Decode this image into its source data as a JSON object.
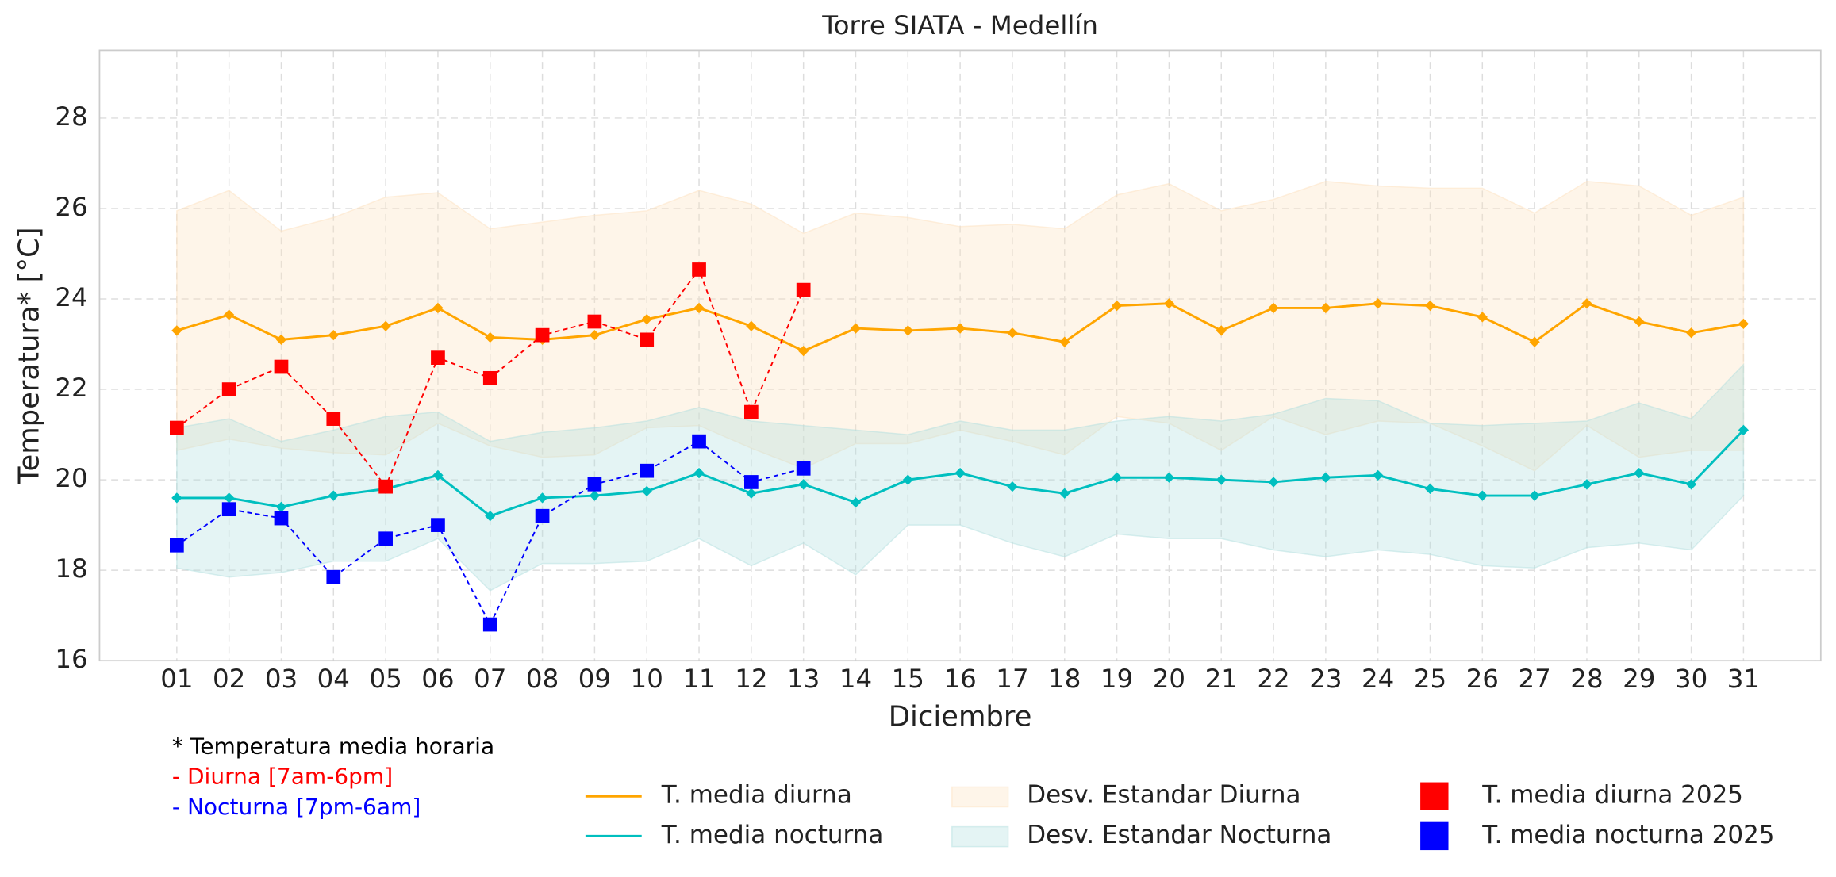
{
  "chart_data": {
    "type": "line",
    "title": "Torre SIATA - Medellín",
    "x_label": "Diciembre",
    "y_label": "Temperatura* [°C]",
    "categories": [
      "01",
      "02",
      "03",
      "04",
      "05",
      "06",
      "07",
      "08",
      "09",
      "10",
      "11",
      "12",
      "13",
      "14",
      "15",
      "16",
      "17",
      "18",
      "19",
      "20",
      "21",
      "22",
      "23",
      "24",
      "25",
      "26",
      "27",
      "28",
      "29",
      "30",
      "31"
    ],
    "ylim": [
      16,
      29.5
    ],
    "yticks": [
      16,
      18,
      20,
      22,
      24,
      26,
      28
    ],
    "grid": true,
    "bands": [
      {
        "name": "Desv. Estandar Diurna",
        "color": "#fde2c0",
        "upper": [
          25.95,
          26.4,
          25.5,
          25.8,
          26.25,
          26.35,
          25.55,
          25.7,
          25.85,
          25.95,
          26.4,
          26.1,
          25.45,
          25.9,
          25.8,
          25.6,
          25.65,
          25.55,
          26.3,
          26.55,
          25.95,
          26.2,
          26.6,
          26.5,
          26.45,
          26.45,
          25.9,
          26.6,
          26.5,
          25.85,
          26.25
        ],
        "lower": [
          20.65,
          20.9,
          20.7,
          20.6,
          20.55,
          21.25,
          20.75,
          20.5,
          20.55,
          21.15,
          21.2,
          20.7,
          20.25,
          20.8,
          20.8,
          21.1,
          20.85,
          20.55,
          21.4,
          21.25,
          20.65,
          21.4,
          21.0,
          21.3,
          21.25,
          20.75,
          20.2,
          21.2,
          20.5,
          20.65,
          20.65
        ]
      },
      {
        "name": "Desv. Estandar Nocturna",
        "color": "#b3e0e0",
        "upper": [
          21.15,
          21.35,
          20.85,
          21.1,
          21.4,
          21.5,
          20.85,
          21.05,
          21.15,
          21.3,
          21.6,
          21.3,
          21.2,
          21.1,
          21.0,
          21.3,
          21.1,
          21.1,
          21.3,
          21.4,
          21.3,
          21.45,
          21.8,
          21.75,
          21.25,
          21.2,
          21.25,
          21.3,
          21.7,
          21.35,
          22.55
        ],
        "lower": [
          18.05,
          17.85,
          17.95,
          18.2,
          18.2,
          18.7,
          17.55,
          18.15,
          18.15,
          18.2,
          18.7,
          18.1,
          18.6,
          17.9,
          19.0,
          19.0,
          18.6,
          18.3,
          18.8,
          18.7,
          18.7,
          18.45,
          18.3,
          18.45,
          18.35,
          18.1,
          18.05,
          18.5,
          18.6,
          18.45,
          19.65
        ]
      }
    ],
    "series": [
      {
        "name": "T. media diurna",
        "color": "#ffa500",
        "marker": "diamond",
        "linestyle": "solid",
        "values": [
          23.3,
          23.65,
          23.1,
          23.2,
          23.4,
          23.8,
          23.15,
          23.1,
          23.2,
          23.55,
          23.8,
          23.4,
          22.85,
          23.35,
          23.3,
          23.35,
          23.25,
          23.05,
          23.85,
          23.9,
          23.3,
          23.8,
          23.8,
          23.9,
          23.85,
          23.6,
          23.05,
          23.9,
          23.5,
          23.25,
          23.45
        ]
      },
      {
        "name": "T. media nocturna",
        "color": "#00bfbf",
        "marker": "diamond",
        "linestyle": "solid",
        "values": [
          19.6,
          19.6,
          19.4,
          19.65,
          19.8,
          20.1,
          19.2,
          19.6,
          19.65,
          19.75,
          20.15,
          19.7,
          19.9,
          19.5,
          20.0,
          20.15,
          19.85,
          19.7,
          20.05,
          20.05,
          20.0,
          19.95,
          20.05,
          20.1,
          19.8,
          19.65,
          19.65,
          19.9,
          20.15,
          19.9,
          21.1
        ]
      },
      {
        "name": "T. media diurna 2025",
        "color": "#ff0000",
        "marker": "square",
        "linestyle": "dashed",
        "values": [
          21.15,
          22.0,
          22.5,
          21.35,
          19.85,
          22.7,
          22.25,
          23.2,
          23.5,
          23.1,
          24.65,
          21.5,
          24.2,
          null,
          null,
          null,
          null,
          null,
          null,
          null,
          null,
          null,
          null,
          null,
          null,
          null,
          null,
          null,
          null,
          null,
          null
        ]
      },
      {
        "name": "T. media nocturna 2025",
        "color": "#0000ff",
        "marker": "square",
        "linestyle": "dashed",
        "values": [
          18.55,
          19.35,
          19.15,
          17.85,
          18.7,
          19.0,
          16.8,
          19.2,
          19.9,
          20.2,
          20.85,
          19.95,
          20.25,
          null,
          null,
          null,
          null,
          null,
          null,
          null,
          null,
          null,
          null,
          null,
          null,
          null,
          null,
          null,
          null,
          null,
          null
        ]
      }
    ],
    "notes": [
      {
        "text": "* Temperatura media horaria",
        "color": "#000000"
      },
      {
        "text": "- Diurna [7am-6pm]",
        "color": "#ff0000"
      },
      {
        "text": "- Nocturna [7pm-6am]",
        "color": "#0000ff"
      }
    ]
  }
}
